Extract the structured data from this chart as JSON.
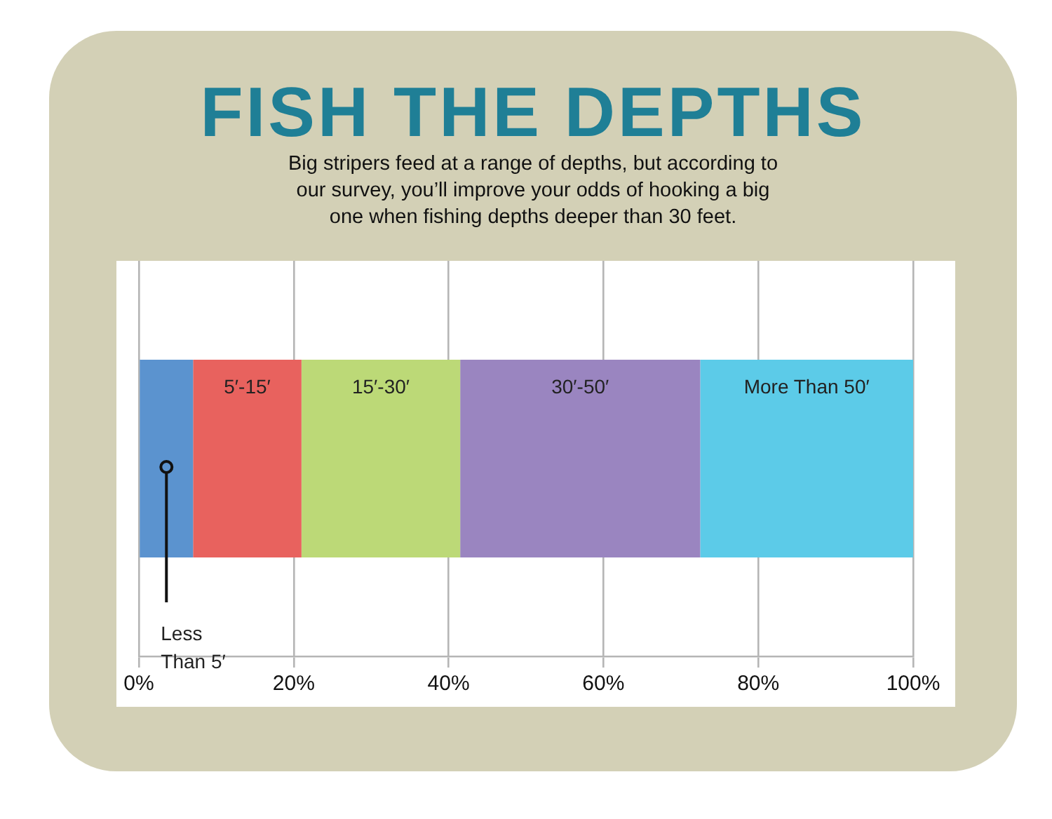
{
  "chart_data": {
    "type": "bar",
    "orientation": "horizontal",
    "stacked": true,
    "title": "FISH THE DEPTHS",
    "subtitle": "Big stripers feed at a range of depths, but according to our survey, you’ll improve your odds of hooking a big one when fishing depths deeper than 30 feet.",
    "categories": [
      null
    ],
    "series": [
      {
        "name": "Less Than 5′",
        "color": "#5b93cf",
        "values": [
          7
        ]
      },
      {
        "name": "5′-15′",
        "color": "#e8625e",
        "values": [
          14
        ]
      },
      {
        "name": "15′-30′",
        "color": "#bcd977",
        "values": [
          20.5
        ]
      },
      {
        "name": "30′-50′",
        "color": "#9a85c0",
        "values": [
          31
        ]
      },
      {
        "name": "More Than 50′",
        "color": "#5ccbe8",
        "values": [
          27.5
        ]
      }
    ],
    "xlim": [
      0,
      100
    ],
    "xticks": [
      {
        "value": 0,
        "label": "0%"
      },
      {
        "value": 20,
        "label": "20%"
      },
      {
        "value": 40,
        "label": "40%"
      },
      {
        "value": 60,
        "label": "60%"
      },
      {
        "value": 80,
        "label": "80%"
      },
      {
        "value": 100,
        "label": "100%"
      }
    ],
    "grid": "x",
    "legend": false
  }
}
